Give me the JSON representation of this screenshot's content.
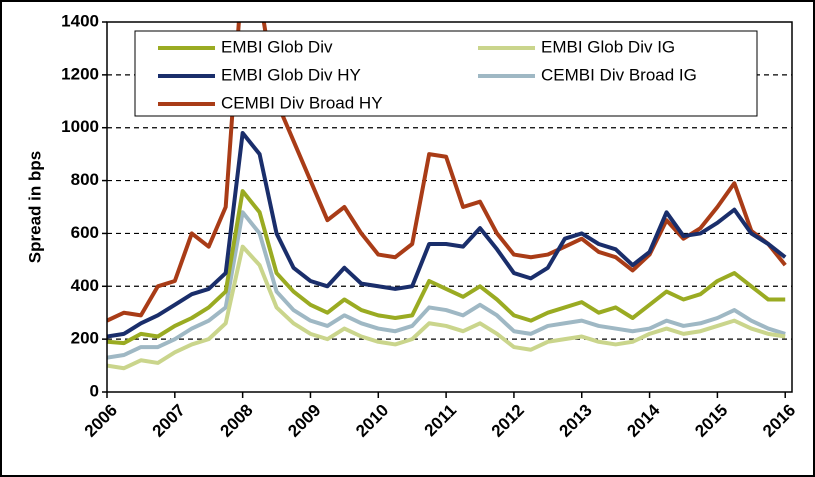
{
  "chart_data": {
    "type": "line",
    "y_label": "Spread in bps",
    "x": [
      2006,
      2006.25,
      2006.5,
      2006.75,
      2007,
      2007.25,
      2007.5,
      2007.75,
      2008,
      2008.25,
      2008.5,
      2008.75,
      2009,
      2009.25,
      2009.5,
      2009.75,
      2010,
      2010.25,
      2010.5,
      2010.75,
      2011,
      2011.25,
      2011.5,
      2011.75,
      2012,
      2012.25,
      2012.5,
      2012.75,
      2013,
      2013.25,
      2013.5,
      2013.75,
      2014,
      2014.25,
      2014.5,
      2014.75,
      2015,
      2015.25,
      2015.5,
      2015.75,
      2016
    ],
    "xlim": [
      2006,
      2016.1
    ],
    "xticks": [
      2006,
      2007,
      2008,
      2009,
      2010,
      2011,
      2012,
      2013,
      2014,
      2015,
      2016
    ],
    "ylim": [
      0,
      1400
    ],
    "yticks": [
      0,
      200,
      400,
      600,
      800,
      1000,
      1200,
      1400
    ],
    "grid": true,
    "series": [
      {
        "name": "EMBI Glob Div",
        "color": "#9aab22",
        "values": [
          190,
          185,
          220,
          210,
          250,
          280,
          320,
          380,
          760,
          680,
          450,
          380,
          330,
          300,
          350,
          310,
          290,
          280,
          290,
          420,
          390,
          360,
          400,
          350,
          290,
          270,
          300,
          320,
          340,
          300,
          320,
          280,
          330,
          380,
          350,
          370,
          420,
          450,
          400,
          350,
          350
        ]
      },
      {
        "name": "EMBI Glob Div IG",
        "color": "#cad58c",
        "values": [
          100,
          90,
          120,
          110,
          150,
          180,
          200,
          260,
          550,
          480,
          320,
          260,
          220,
          200,
          240,
          210,
          190,
          180,
          200,
          260,
          250,
          230,
          260,
          220,
          170,
          160,
          190,
          200,
          210,
          190,
          180,
          190,
          220,
          240,
          220,
          230,
          250,
          270,
          240,
          220,
          210
        ]
      },
      {
        "name": "EMBI Glob Div HY",
        "color": "#1a2e6b",
        "values": [
          210,
          220,
          260,
          290,
          330,
          370,
          390,
          450,
          980,
          900,
          600,
          470,
          420,
          400,
          470,
          410,
          400,
          390,
          400,
          560,
          560,
          550,
          620,
          540,
          450,
          430,
          470,
          580,
          600,
          560,
          540,
          480,
          530,
          680,
          590,
          600,
          640,
          690,
          600,
          560,
          510
        ]
      },
      {
        "name": "CEMBI Div Broad IG",
        "color": "#9fb8c4",
        "values": [
          130,
          140,
          170,
          170,
          200,
          240,
          270,
          320,
          680,
          600,
          380,
          310,
          270,
          250,
          290,
          260,
          240,
          230,
          250,
          320,
          310,
          290,
          330,
          290,
          230,
          220,
          250,
          260,
          270,
          250,
          240,
          230,
          240,
          270,
          250,
          260,
          280,
          310,
          270,
          240,
          220
        ]
      },
      {
        "name": "CEMBI Div Broad HY",
        "color": "#a93c17",
        "values": [
          270,
          300,
          290,
          400,
          420,
          600,
          550,
          700,
          1600,
          1500,
          1100,
          950,
          800,
          650,
          700,
          600,
          520,
          510,
          560,
          900,
          890,
          700,
          720,
          600,
          520,
          510,
          520,
          550,
          580,
          530,
          510,
          460,
          520,
          650,
          580,
          620,
          700,
          790,
          610,
          560,
          480
        ]
      }
    ]
  }
}
